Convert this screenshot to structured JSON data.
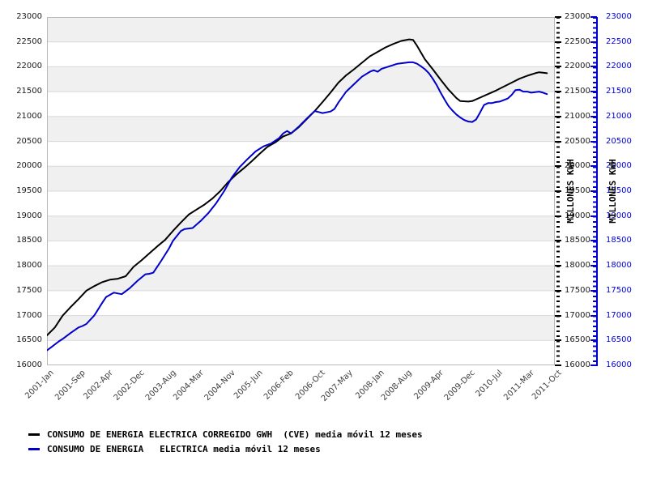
{
  "chart_data": {
    "type": "line",
    "title": "",
    "xlabel": "",
    "right_axis_titles": [
      "MILLONES KWH",
      "MILLONES KWH"
    ],
    "ylim": [
      16000,
      23000
    ],
    "ytick_step": 500,
    "yticks": [
      23000,
      22500,
      22000,
      21500,
      21000,
      20500,
      20000,
      19500,
      19000,
      18500,
      18000,
      17500,
      17000,
      16500,
      16000
    ],
    "xtick_labels": [
      "2001-Jan",
      "2001-Sep",
      "2002-Apr",
      "2002-Dec",
      "2003-Aug",
      "2004-Mar",
      "2004-Nov",
      "2005-Jun",
      "2006-Feb",
      "2006-Oct",
      "2007-May",
      "2008-Jan",
      "2008-Aug",
      "2009-Apr",
      "2009-Dec",
      "2010-Jul",
      "2011-Mar",
      "2011-Oct"
    ],
    "x_range": [
      "2001-Jan",
      "2011-Oct"
    ],
    "grid": "horizontal-bands",
    "band_colors": [
      "#f0f0f0",
      "#ffffff"
    ],
    "gridline_color": "#d8d8d8",
    "border_color": "#b8b8b8",
    "legend_position": "bottom-left",
    "series": [
      {
        "name": "CONSUMO DE ENERGIA ELECTRICA CORREGIDO GWH  (CVE) media móvil 12 meses",
        "color": "#000000",
        "points": [
          [
            "2001-01",
            16600
          ],
          [
            "2001-03",
            16760
          ],
          [
            "2001-05",
            17000
          ],
          [
            "2001-07",
            17170
          ],
          [
            "2001-09",
            17330
          ],
          [
            "2001-11",
            17500
          ],
          [
            "2002-01",
            17590
          ],
          [
            "2002-03",
            17670
          ],
          [
            "2002-05",
            17720
          ],
          [
            "2002-07",
            17740
          ],
          [
            "2002-09",
            17790
          ],
          [
            "2002-11",
            17980
          ],
          [
            "2003-01",
            18110
          ],
          [
            "2003-03",
            18250
          ],
          [
            "2003-05",
            18390
          ],
          [
            "2003-07",
            18520
          ],
          [
            "2003-09",
            18700
          ],
          [
            "2003-11",
            18870
          ],
          [
            "2004-01",
            19030
          ],
          [
            "2004-03",
            19130
          ],
          [
            "2004-05",
            19230
          ],
          [
            "2004-07",
            19350
          ],
          [
            "2004-09",
            19500
          ],
          [
            "2004-11",
            19680
          ],
          [
            "2005-01",
            19830
          ],
          [
            "2005-03",
            19960
          ],
          [
            "2005-05",
            20100
          ],
          [
            "2005-07",
            20250
          ],
          [
            "2005-09",
            20390
          ],
          [
            "2005-11",
            20480
          ],
          [
            "2006-01",
            20600
          ],
          [
            "2006-03",
            20660
          ],
          [
            "2006-05",
            20790
          ],
          [
            "2006-07",
            20950
          ],
          [
            "2006-09",
            21110
          ],
          [
            "2006-11",
            21290
          ],
          [
            "2007-01",
            21480
          ],
          [
            "2007-03",
            21680
          ],
          [
            "2007-05",
            21830
          ],
          [
            "2007-07",
            21950
          ],
          [
            "2007-09",
            22080
          ],
          [
            "2007-11",
            22210
          ],
          [
            "2008-01",
            22300
          ],
          [
            "2008-03",
            22390
          ],
          [
            "2008-05",
            22460
          ],
          [
            "2008-07",
            22520
          ],
          [
            "2008-09",
            22550
          ],
          [
            "2008-10",
            22540
          ],
          [
            "2008-11",
            22420
          ],
          [
            "2009-01",
            22150
          ],
          [
            "2009-03",
            21950
          ],
          [
            "2009-05",
            21740
          ],
          [
            "2009-07",
            21540
          ],
          [
            "2009-09",
            21370
          ],
          [
            "2009-10",
            21310
          ],
          [
            "2009-12",
            21300
          ],
          [
            "2010-01",
            21310
          ],
          [
            "2010-03",
            21380
          ],
          [
            "2010-05",
            21450
          ],
          [
            "2010-07",
            21520
          ],
          [
            "2010-09",
            21600
          ],
          [
            "2010-11",
            21680
          ],
          [
            "2011-01",
            21760
          ],
          [
            "2011-03",
            21820
          ],
          [
            "2011-05",
            21870
          ],
          [
            "2011-06",
            21890
          ],
          [
            "2011-07",
            21880
          ],
          [
            "2011-08",
            21870
          ]
        ]
      },
      {
        "name": "CONSUMO DE ENERGIA   ELECTRICA media móvil 12 meses",
        "color": "#0000cc",
        "points": [
          [
            "2001-01",
            16300
          ],
          [
            "2001-02",
            16360
          ],
          [
            "2001-04",
            16480
          ],
          [
            "2001-05",
            16530
          ],
          [
            "2001-07",
            16650
          ],
          [
            "2001-09",
            16760
          ],
          [
            "2001-10",
            16790
          ],
          [
            "2001-11",
            16830
          ],
          [
            "2002-01",
            17000
          ],
          [
            "2002-03",
            17250
          ],
          [
            "2002-04",
            17370
          ],
          [
            "2002-06",
            17460
          ],
          [
            "2002-08",
            17430
          ],
          [
            "2002-10",
            17550
          ],
          [
            "2002-12",
            17700
          ],
          [
            "2003-02",
            17830
          ],
          [
            "2003-03",
            17840
          ],
          [
            "2003-04",
            17860
          ],
          [
            "2003-06",
            18100
          ],
          [
            "2003-08",
            18350
          ],
          [
            "2003-09",
            18500
          ],
          [
            "2003-11",
            18700
          ],
          [
            "2003-12",
            18740
          ],
          [
            "2004-02",
            18760
          ],
          [
            "2004-04",
            18900
          ],
          [
            "2004-06",
            19060
          ],
          [
            "2004-08",
            19260
          ],
          [
            "2004-10",
            19500
          ],
          [
            "2004-12",
            19780
          ],
          [
            "2005-02",
            19990
          ],
          [
            "2005-04",
            20150
          ],
          [
            "2005-06",
            20300
          ],
          [
            "2005-08",
            20400
          ],
          [
            "2005-10",
            20460
          ],
          [
            "2005-12",
            20570
          ],
          [
            "2006-01",
            20660
          ],
          [
            "2006-02",
            20710
          ],
          [
            "2006-03",
            20660
          ],
          [
            "2006-05",
            20800
          ],
          [
            "2006-07",
            20960
          ],
          [
            "2006-09",
            21110
          ],
          [
            "2006-10",
            21090
          ],
          [
            "2006-11",
            21070
          ],
          [
            "2007-01",
            21100
          ],
          [
            "2007-02",
            21150
          ],
          [
            "2007-03",
            21280
          ],
          [
            "2007-05",
            21500
          ],
          [
            "2007-07",
            21650
          ],
          [
            "2007-09",
            21800
          ],
          [
            "2007-11",
            21900
          ],
          [
            "2007-12",
            21930
          ],
          [
            "2008-01",
            21900
          ],
          [
            "2008-02",
            21960
          ],
          [
            "2008-04",
            22010
          ],
          [
            "2008-06",
            22060
          ],
          [
            "2008-08",
            22080
          ],
          [
            "2008-09",
            22090
          ],
          [
            "2008-10",
            22090
          ],
          [
            "2008-11",
            22060
          ],
          [
            "2008-12",
            22010
          ],
          [
            "2009-01",
            21950
          ],
          [
            "2009-02",
            21870
          ],
          [
            "2009-03",
            21760
          ],
          [
            "2009-04",
            21630
          ],
          [
            "2009-05",
            21480
          ],
          [
            "2009-06",
            21340
          ],
          [
            "2009-07",
            21210
          ],
          [
            "2009-08",
            21120
          ],
          [
            "2009-09",
            21040
          ],
          [
            "2009-10",
            20980
          ],
          [
            "2009-11",
            20930
          ],
          [
            "2009-12",
            20900
          ],
          [
            "2010-01",
            20890
          ],
          [
            "2010-02",
            20940
          ],
          [
            "2010-03",
            21080
          ],
          [
            "2010-04",
            21230
          ],
          [
            "2010-05",
            21270
          ],
          [
            "2010-06",
            21270
          ],
          [
            "2010-07",
            21290
          ],
          [
            "2010-08",
            21300
          ],
          [
            "2010-09",
            21330
          ],
          [
            "2010-10",
            21360
          ],
          [
            "2010-11",
            21430
          ],
          [
            "2010-12",
            21530
          ],
          [
            "2011-01",
            21540
          ],
          [
            "2011-02",
            21500
          ],
          [
            "2011-03",
            21500
          ],
          [
            "2011-04",
            21480
          ],
          [
            "2011-05",
            21490
          ],
          [
            "2011-06",
            21500
          ],
          [
            "2011-07",
            21480
          ],
          [
            "2011-08",
            21450
          ]
        ]
      }
    ]
  }
}
